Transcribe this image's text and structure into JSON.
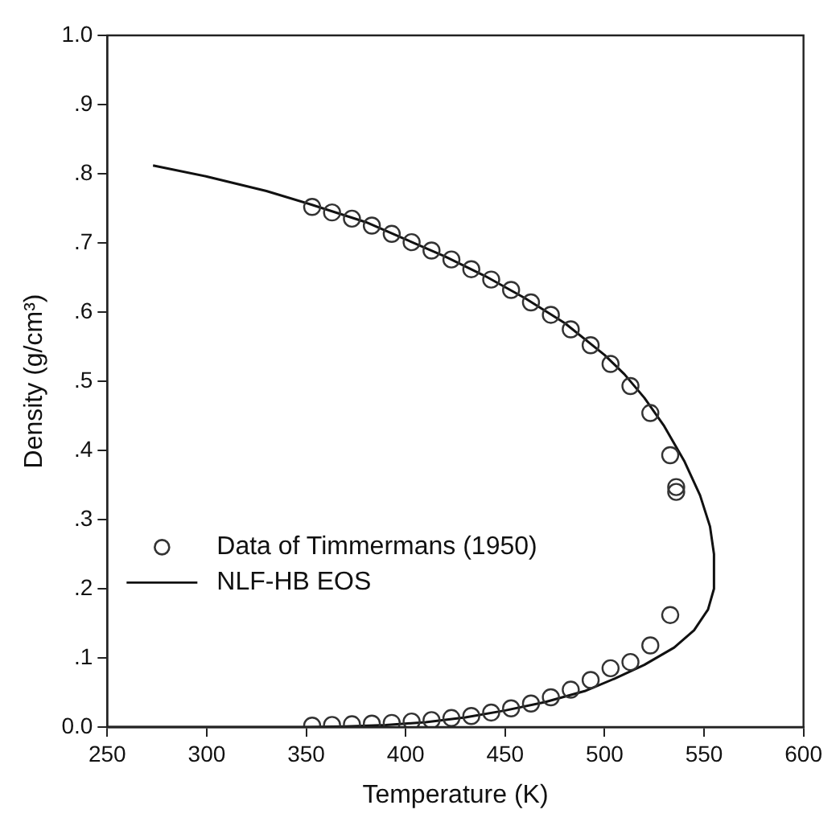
{
  "chart_data": {
    "type": "scatter",
    "xlabel": "Temperature (K)",
    "ylabel": "Density (g/cm³)",
    "xlim": [
      250,
      600
    ],
    "xticks": [
      250,
      300,
      350,
      400,
      450,
      500,
      550,
      600
    ],
    "ylim": [
      0,
      1.0
    ],
    "yticks": [
      {
        "value": 0,
        "label": "0.0"
      },
      {
        "value": 0.1,
        "label": ".1"
      },
      {
        "value": 0.2,
        "label": ".2"
      },
      {
        "value": 0.3,
        "label": ".3"
      },
      {
        "value": 0.4,
        "label": ".4"
      },
      {
        "value": 0.5,
        "label": ".5"
      },
      {
        "value": 0.6,
        "label": ".6"
      },
      {
        "value": 0.7,
        "label": ".7"
      },
      {
        "value": 0.8,
        "label": ".8"
      },
      {
        "value": 0.9,
        "label": ".9"
      },
      {
        "value": 1.0,
        "label": "1.0"
      }
    ],
    "grid": false,
    "legend": "left",
    "series": [
      {
        "name": "Data of Timmermans (1950)",
        "marker": "circle",
        "color": "#333333",
        "x": [
          353,
          363,
          373,
          383,
          393,
          403,
          413,
          423,
          433,
          443,
          453,
          463,
          473,
          483,
          493,
          503,
          513,
          523,
          533,
          536,
          536,
          353,
          363,
          373,
          383,
          393,
          403,
          413,
          423,
          433,
          443,
          453,
          463,
          473,
          483,
          493,
          503,
          513,
          523,
          533
        ],
        "values": [
          0.752,
          0.744,
          0.735,
          0.725,
          0.713,
          0.701,
          0.689,
          0.676,
          0.662,
          0.647,
          0.632,
          0.614,
          0.596,
          0.575,
          0.552,
          0.525,
          0.493,
          0.454,
          0.393,
          0.347,
          0.34,
          0.002,
          0.003,
          0.004,
          0.005,
          0.006,
          0.008,
          0.01,
          0.013,
          0.016,
          0.021,
          0.027,
          0.034,
          0.043,
          0.054,
          0.068,
          0.085,
          0.094,
          0.118,
          0.162
        ]
      },
      {
        "name": "NLF-HB EOS",
        "type": "line",
        "marker": "none",
        "line_style": "solid",
        "color": "#111111",
        "x": [
          273,
          300,
          330,
          353,
          380,
          400,
          420,
          440,
          460,
          480,
          500,
          510,
          520,
          530,
          540,
          548,
          553,
          555,
          555,
          552,
          545,
          535,
          520,
          505,
          490,
          470,
          450,
          430,
          410,
          390,
          370,
          350,
          250
        ],
        "values": [
          0.812,
          0.796,
          0.775,
          0.755,
          0.73,
          0.705,
          0.68,
          0.652,
          0.62,
          0.584,
          0.538,
          0.51,
          0.476,
          0.435,
          0.385,
          0.335,
          0.29,
          0.25,
          0.2,
          0.17,
          0.14,
          0.115,
          0.09,
          0.07,
          0.052,
          0.036,
          0.024,
          0.014,
          0.007,
          0.003,
          0.001,
          0,
          0
        ]
      }
    ]
  }
}
